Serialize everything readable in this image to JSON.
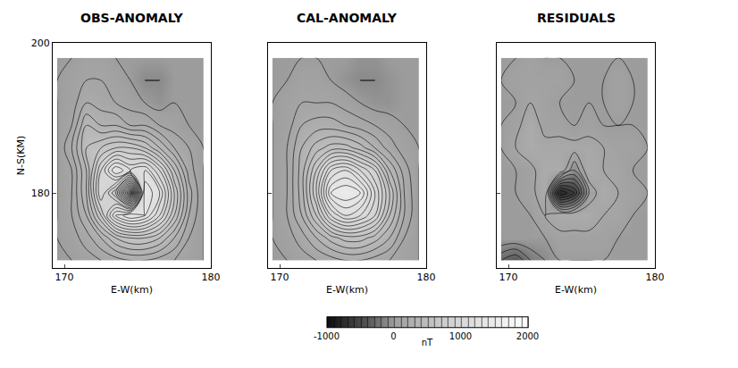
{
  "chart_data": [
    {
      "type": "contour",
      "title": "OBS-ANOMALY",
      "xlabel": "E-W(km)",
      "ylabel": "N-S(KM)",
      "xlim": [
        169.2,
        180
      ],
      "ylim": [
        170,
        200
      ],
      "xticks": [
        170,
        180
      ],
      "yticks": [
        180,
        200
      ],
      "x": [
        169.5,
        170.5,
        171.5,
        172.5,
        173.5,
        174.5,
        175.5,
        176.5,
        177.5,
        178.5,
        179.5
      ],
      "y": [
        171,
        174,
        177,
        180,
        183,
        186,
        189,
        192,
        195,
        198
      ],
      "z": [
        [
          0,
          0,
          50,
          100,
          150,
          200,
          200,
          150,
          100,
          50,
          0
        ],
        [
          0,
          50,
          150,
          300,
          500,
          600,
          600,
          500,
          300,
          100,
          0
        ],
        [
          0,
          100,
          300,
          700,
          1200,
          1400,
          1300,
          1000,
          600,
          200,
          0
        ],
        [
          0,
          100,
          400,
          1000,
          600,
          -300,
          1400,
          1200,
          700,
          250,
          0
        ],
        [
          0,
          100,
          400,
          900,
          1300,
          1100,
          1200,
          900,
          500,
          150,
          0
        ],
        [
          0,
          200,
          500,
          600,
          700,
          700,
          600,
          400,
          200,
          100,
          0
        ],
        [
          0,
          100,
          400,
          300,
          300,
          200,
          200,
          100,
          50,
          0,
          0
        ],
        [
          0,
          50,
          200,
          150,
          100,
          50,
          0,
          -50,
          0,
          0,
          0
        ],
        [
          0,
          50,
          100,
          100,
          50,
          0,
          -100,
          -100,
          0,
          0,
          0
        ],
        [
          0,
          0,
          50,
          50,
          0,
          0,
          0,
          0,
          0,
          0,
          0
        ]
      ],
      "colorbar": {
        "range": [
          -1000,
          2000
        ],
        "ticks": [
          -1000,
          0,
          1000,
          2000
        ],
        "title": "nT"
      }
    },
    {
      "type": "contour",
      "title": "CAL-ANOMALY",
      "xlabel": "E-W(km)",
      "tick_labels": "x",
      "xlim": [
        169.2,
        180
      ],
      "ylim": [
        170,
        200
      ],
      "xticks": [
        170,
        180
      ],
      "yticks": [
        180,
        200
      ],
      "x": [
        169.5,
        170.5,
        171.5,
        172.5,
        173.5,
        174.5,
        175.5,
        176.5,
        177.5,
        178.5,
        179.5
      ],
      "y": [
        171,
        174,
        177,
        180,
        183,
        186,
        189,
        192,
        195,
        198
      ],
      "z": [
        [
          0,
          0,
          50,
          100,
          150,
          200,
          200,
          150,
          100,
          50,
          0
        ],
        [
          0,
          50,
          150,
          300,
          450,
          550,
          550,
          450,
          300,
          100,
          0
        ],
        [
          0,
          100,
          300,
          600,
          1000,
          1200,
          1100,
          900,
          500,
          200,
          0
        ],
        [
          0,
          100,
          350,
          800,
          1400,
          1500,
          1400,
          1000,
          600,
          200,
          0
        ],
        [
          0,
          100,
          350,
          700,
          1100,
          1200,
          1000,
          800,
          400,
          150,
          0
        ],
        [
          0,
          100,
          300,
          450,
          550,
          550,
          450,
          300,
          150,
          50,
          0
        ],
        [
          0,
          50,
          200,
          250,
          250,
          200,
          150,
          100,
          50,
          0,
          0
        ],
        [
          0,
          50,
          100,
          100,
          100,
          50,
          0,
          -50,
          -50,
          0,
          0
        ],
        [
          0,
          0,
          50,
          50,
          0,
          -50,
          -100,
          -100,
          -50,
          0,
          0
        ],
        [
          0,
          0,
          0,
          0,
          0,
          0,
          -50,
          -50,
          0,
          0,
          0
        ]
      ],
      "colorbar": {
        "range": [
          -1000,
          2000
        ],
        "ticks": [
          -1000,
          0,
          1000,
          2000
        ],
        "title": "nT"
      }
    },
    {
      "type": "contour",
      "title": "RESIDUALS",
      "xlabel": "E-W(km)",
      "tick_labels": "x",
      "xlim": [
        169.2,
        180
      ],
      "ylim": [
        170,
        200
      ],
      "xticks": [
        170,
        180
      ],
      "yticks": [
        180,
        200
      ],
      "x": [
        169.5,
        170.5,
        171.5,
        172.5,
        173.5,
        174.5,
        175.5,
        176.5,
        177.5,
        178.5,
        179.5
      ],
      "y": [
        171,
        174,
        177,
        180,
        183,
        186,
        189,
        192,
        195,
        198
      ],
      "z": [
        [
          -300,
          -400,
          -200,
          -100,
          0,
          0,
          0,
          0,
          0,
          0,
          0
        ],
        [
          0,
          0,
          0,
          0,
          50,
          50,
          50,
          50,
          0,
          0,
          0
        ],
        [
          0,
          0,
          0,
          100,
          200,
          200,
          200,
          100,
          100,
          0,
          0
        ],
        [
          0,
          0,
          50,
          200,
          -800,
          -600,
          0,
          200,
          100,
          50,
          0
        ],
        [
          0,
          0,
          50,
          200,
          200,
          -100,
          200,
          100,
          100,
          0,
          0
        ],
        [
          0,
          100,
          200,
          150,
          150,
          150,
          150,
          100,
          50,
          50,
          0
        ],
        [
          0,
          50,
          200,
          50,
          50,
          0,
          50,
          0,
          0,
          0,
          0
        ],
        [
          0,
          0,
          100,
          50,
          0,
          0,
          0,
          0,
          50,
          0,
          0
        ],
        [
          0,
          50,
          50,
          50,
          50,
          0,
          0,
          0,
          50,
          0,
          0
        ],
        [
          0,
          0,
          50,
          0,
          0,
          0,
          0,
          0,
          0,
          0,
          0
        ]
      ],
      "colorbar": {
        "range": [
          -1000,
          2000
        ],
        "ticks": [
          -1000,
          0,
          1000,
          2000
        ],
        "title": "nT"
      }
    }
  ]
}
